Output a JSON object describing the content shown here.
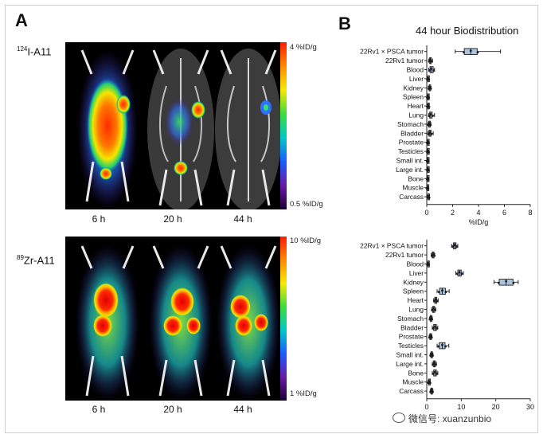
{
  "panel_a": {
    "letter": "A",
    "tracers": [
      {
        "iso": "124",
        "name": "I-A11",
        "cbar_max": "4 %ID/g",
        "cbar_min": "0.5 %ID/g"
      },
      {
        "iso": "89",
        "name": "Zr-A11",
        "cbar_max": "10 %ID/g",
        "cbar_min": "1 %ID/g"
      }
    ],
    "times": [
      "6 h",
      "20 h",
      "44 h"
    ]
  },
  "panel_b": {
    "letter": "B",
    "title": "44 hour Biodistribution"
  },
  "chart_data": [
    {
      "type": "box",
      "title": "44 hour Biodistribution",
      "xlabel": "%ID/g",
      "xlim": [
        0,
        8
      ],
      "xticks": [
        0,
        2,
        4,
        6,
        8
      ],
      "categories": [
        "22Rv1 × PSCA tumor",
        "22Rv1 tumor",
        "Blood",
        "Liver",
        "Kidney",
        "Spleen",
        "Heart",
        "Lung",
        "Stomach",
        "Bladder",
        "Prostate",
        "Testicles",
        "Small int.",
        "Large int.",
        "Bone",
        "Muscle",
        "Carcass"
      ],
      "boxes": [
        {
          "min": 2.2,
          "q1": 2.9,
          "median": 3.4,
          "q3": 3.9,
          "max": 5.7
        },
        {
          "min": 0.15,
          "q1": 0.22,
          "median": 0.28,
          "q3": 0.35,
          "max": 0.45
        },
        {
          "min": 0.15,
          "q1": 0.25,
          "median": 0.35,
          "q3": 0.5,
          "max": 0.6
        },
        {
          "min": 0.05,
          "q1": 0.08,
          "median": 0.1,
          "q3": 0.14,
          "max": 0.18
        },
        {
          "min": 0.12,
          "q1": 0.18,
          "median": 0.22,
          "q3": 0.28,
          "max": 0.33
        },
        {
          "min": 0.05,
          "q1": 0.07,
          "median": 0.1,
          "q3": 0.13,
          "max": 0.16
        },
        {
          "min": 0.06,
          "q1": 0.08,
          "median": 0.11,
          "q3": 0.15,
          "max": 0.18
        },
        {
          "min": 0.15,
          "q1": 0.22,
          "median": 0.3,
          "q3": 0.42,
          "max": 0.6
        },
        {
          "min": 0.1,
          "q1": 0.15,
          "median": 0.2,
          "q3": 0.26,
          "max": 0.32
        },
        {
          "min": 0.1,
          "q1": 0.17,
          "median": 0.25,
          "q3": 0.33,
          "max": 0.5
        },
        {
          "min": 0.05,
          "q1": 0.07,
          "median": 0.09,
          "q3": 0.12,
          "max": 0.15
        },
        {
          "min": 0.05,
          "q1": 0.07,
          "median": 0.09,
          "q3": 0.12,
          "max": 0.15
        },
        {
          "min": 0.04,
          "q1": 0.06,
          "median": 0.08,
          "q3": 0.1,
          "max": 0.13
        },
        {
          "min": 0.05,
          "q1": 0.07,
          "median": 0.09,
          "q3": 0.12,
          "max": 0.15
        },
        {
          "min": 0.04,
          "q1": 0.06,
          "median": 0.07,
          "q3": 0.09,
          "max": 0.12
        },
        {
          "min": 0.03,
          "q1": 0.04,
          "median": 0.05,
          "q3": 0.07,
          "max": 0.09
        },
        {
          "min": 0.06,
          "q1": 0.09,
          "median": 0.12,
          "q3": 0.16,
          "max": 0.2
        }
      ]
    },
    {
      "type": "box",
      "xlim": [
        0,
        30
      ],
      "xticks": [
        0,
        10,
        20,
        30
      ],
      "categories": [
        "22Rv1 × PSCA tumor",
        "22Rv1 tumor",
        "Blood",
        "Liver",
        "Kidney",
        "Spleen",
        "Heart",
        "Lung",
        "Stomach",
        "Bladder",
        "Prostate",
        "Testicles",
        "Small int.",
        "Large int.",
        "Bone",
        "Muscle",
        "Carcass"
      ],
      "boxes": [
        {
          "min": 7.2,
          "q1": 7.7,
          "median": 8.1,
          "q3": 8.5,
          "max": 9.0
        },
        {
          "min": 1.3,
          "q1": 1.6,
          "median": 1.8,
          "q3": 2.1,
          "max": 2.3
        },
        {
          "min": 0.2,
          "q1": 0.3,
          "median": 0.4,
          "q3": 0.5,
          "max": 0.6
        },
        {
          "min": 8.4,
          "q1": 9.0,
          "median": 9.5,
          "q3": 10.0,
          "max": 10.6
        },
        {
          "min": 19.5,
          "q1": 21.0,
          "median": 23.0,
          "q3": 25.0,
          "max": 26.5
        },
        {
          "min": 3.0,
          "q1": 3.7,
          "median": 4.5,
          "q3": 5.4,
          "max": 6.5
        },
        {
          "min": 2.0,
          "q1": 2.3,
          "median": 2.6,
          "q3": 2.9,
          "max": 3.3
        },
        {
          "min": 1.4,
          "q1": 1.7,
          "median": 2.0,
          "q3": 2.3,
          "max": 2.6
        },
        {
          "min": 0.8,
          "q1": 1.0,
          "median": 1.2,
          "q3": 1.4,
          "max": 1.6
        },
        {
          "min": 1.6,
          "q1": 2.0,
          "median": 2.4,
          "q3": 2.8,
          "max": 3.2
        },
        {
          "min": 0.7,
          "q1": 0.9,
          "median": 1.1,
          "q3": 1.3,
          "max": 1.5
        },
        {
          "min": 3.0,
          "q1": 3.6,
          "median": 4.5,
          "q3": 5.3,
          "max": 6.4
        },
        {
          "min": 1.0,
          "q1": 1.2,
          "median": 1.4,
          "q3": 1.6,
          "max": 1.8
        },
        {
          "min": 1.6,
          "q1": 1.9,
          "median": 2.2,
          "q3": 2.5,
          "max": 2.8
        },
        {
          "min": 1.6,
          "q1": 2.0,
          "median": 2.4,
          "q3": 2.8,
          "max": 3.2
        },
        {
          "min": 0.4,
          "q1": 0.55,
          "median": 0.7,
          "q3": 0.85,
          "max": 1.0
        },
        {
          "min": 1.0,
          "q1": 1.2,
          "median": 1.4,
          "q3": 1.6,
          "max": 1.8
        }
      ]
    }
  ],
  "watermark": "微信号: xuanzunbio",
  "colors": {
    "box_fill": "#a9c4de",
    "dot": "#1a1a1a",
    "line": "#222222"
  }
}
